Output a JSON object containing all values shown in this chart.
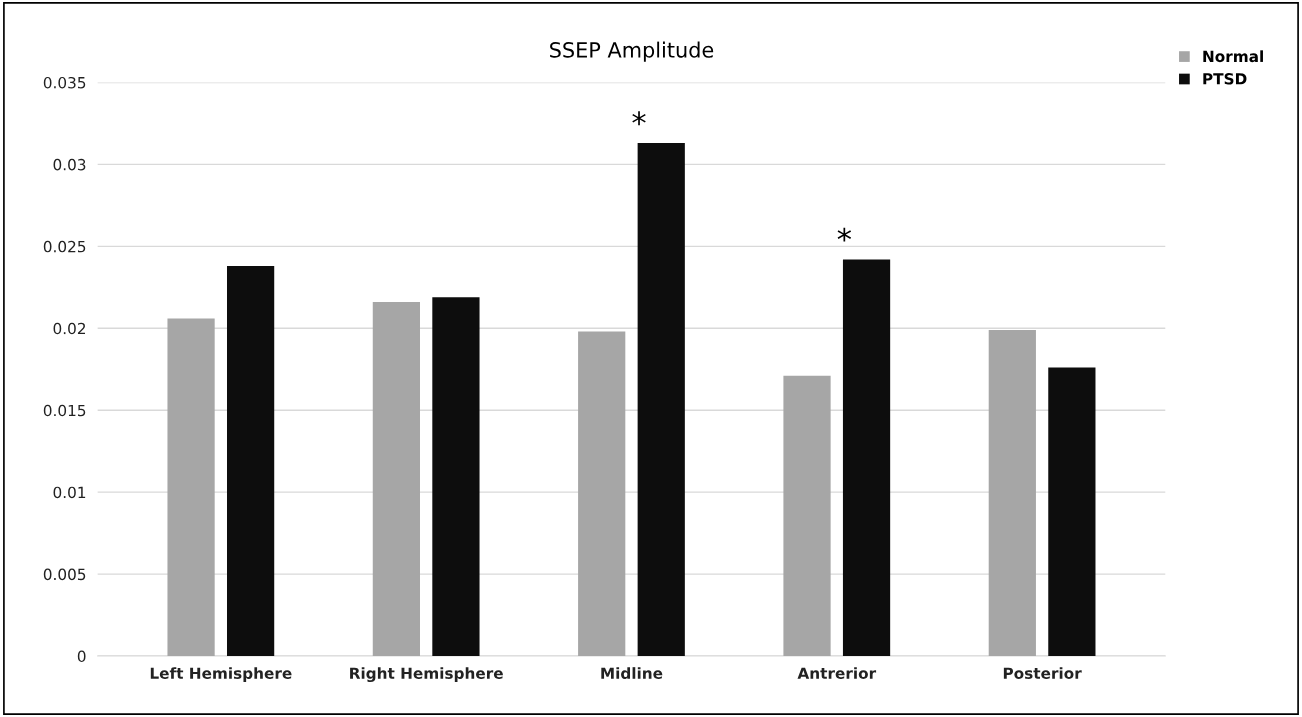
{
  "chart_data": {
    "type": "bar",
    "title": "SSEP Amplitude",
    "categories": [
      "Left Hemisphere",
      "Right Hemisphere",
      "Midline",
      "Antrerior",
      "Posterior"
    ],
    "series": [
      {
        "name": "Normal",
        "color": "#a6a6a6",
        "values": [
          0.0206,
          0.0216,
          0.0198,
          0.0171,
          0.0199
        ]
      },
      {
        "name": "PTSD",
        "color": "#0d0d0d",
        "values": [
          0.0238,
          0.0219,
          0.0313,
          0.0242,
          0.0176
        ]
      }
    ],
    "ylim": [
      0,
      0.035
    ],
    "yticks": [
      0,
      0.005,
      0.01,
      0.015,
      0.02,
      0.025,
      0.03,
      0.035
    ],
    "grid": "y",
    "legend": "top right",
    "annotations": [
      "*",
      "*"
    ]
  }
}
